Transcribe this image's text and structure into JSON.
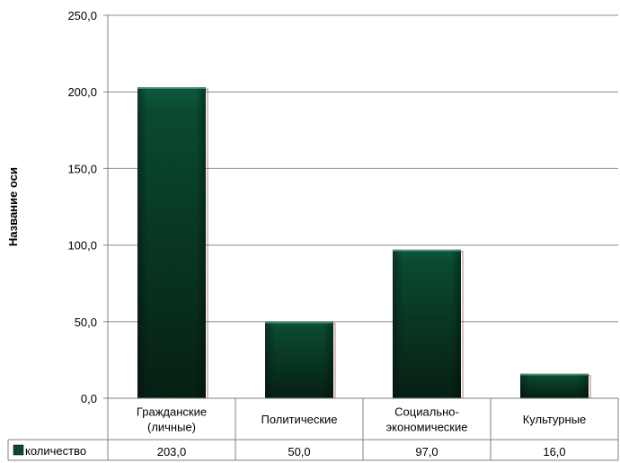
{
  "chart_data": {
    "type": "bar",
    "title": "",
    "xlabel": "",
    "ylabel": "Название оси",
    "ylim": [
      0,
      250
    ],
    "yticks": [
      0,
      50,
      100,
      150,
      200,
      250
    ],
    "ytick_labels": [
      "0,0",
      "50,0",
      "100,0",
      "150,0",
      "200,0",
      "250,0"
    ],
    "grid": true,
    "categories": [
      [
        "Гражданские",
        "(личные)"
      ],
      [
        "Политические"
      ],
      [
        "Социально-",
        "экономические"
      ],
      [
        "Культурные"
      ]
    ],
    "series": [
      {
        "name": "количество",
        "values": [
          203,
          50,
          97,
          16
        ],
        "value_labels": [
          "203,0",
          "50,0",
          "97,0",
          "16,0"
        ]
      }
    ],
    "legend": "data-table",
    "colors": {
      "bar_top": "#0c5a3c",
      "bar_mid": "#0a4a30",
      "bar_bottom": "#061f14",
      "bar_shadow": "#8a2020",
      "grid": "#8c8c8c",
      "axis": "#808080"
    }
  }
}
